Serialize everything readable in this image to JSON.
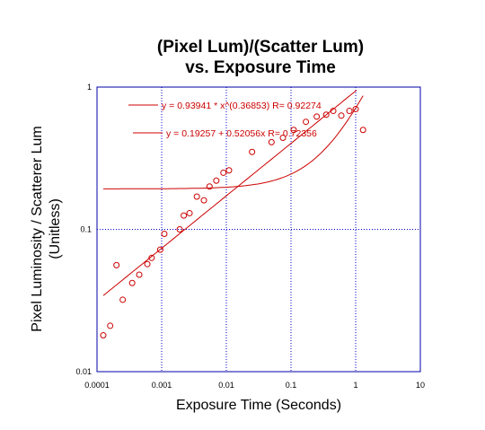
{
  "chart_data": {
    "type": "scatter",
    "title": "(Pixel Lum)/(Scatter Lum)",
    "subtitle": "vs. Exposure Time",
    "xlabel": "Exposure Time (Seconds)",
    "ylabel": "Pixel Luminosity / Scatterer Lum",
    "ylabel2": "(Unitless)",
    "xscale": "log",
    "yscale": "log",
    "xlim": [
      0.0001,
      10
    ],
    "ylim": [
      0.01,
      1
    ],
    "x_ticks": [
      "0.0001",
      "0.001",
      "0.01",
      "0.1",
      "1",
      "10"
    ],
    "y_ticks": [
      "0.01",
      "0.1",
      "1"
    ],
    "grid": "dotted, blue",
    "colors": {
      "data": "#cc0000",
      "frame": "#0000aa",
      "grid": "#0000cc"
    },
    "series": [
      {
        "marker": "open-circle",
        "x": [
          0.000125,
          0.00016,
          0.0002,
          0.00025,
          0.00035,
          0.00045,
          0.0006,
          0.0007,
          0.00095,
          0.0011,
          0.0019,
          0.0022,
          0.0027,
          0.0035,
          0.0045,
          0.0055,
          0.007,
          0.009,
          0.011,
          0.025,
          0.05,
          0.075,
          0.11,
          0.17,
          0.25,
          0.35,
          0.45,
          0.6,
          0.8,
          1.0,
          1.3
        ],
        "y": [
          0.018,
          0.021,
          0.056,
          0.032,
          0.042,
          0.048,
          0.057,
          0.063,
          0.072,
          0.093,
          0.1,
          0.125,
          0.13,
          0.17,
          0.16,
          0.2,
          0.22,
          0.25,
          0.26,
          0.35,
          0.41,
          0.44,
          0.5,
          0.57,
          0.62,
          0.64,
          0.68,
          0.63,
          0.68,
          0.7,
          0.5
        ]
      }
    ],
    "fits": [
      {
        "expression": "y = 0.93941 * x^(0.36853)   R= 0.92274",
        "model": "power",
        "a": 0.93941,
        "b": 0.36853
      },
      {
        "expression": "y = 0.19257 + 0.52056x   R= 0.72356",
        "model": "linear",
        "a": 0.19257,
        "b": 0.52056
      }
    ]
  }
}
